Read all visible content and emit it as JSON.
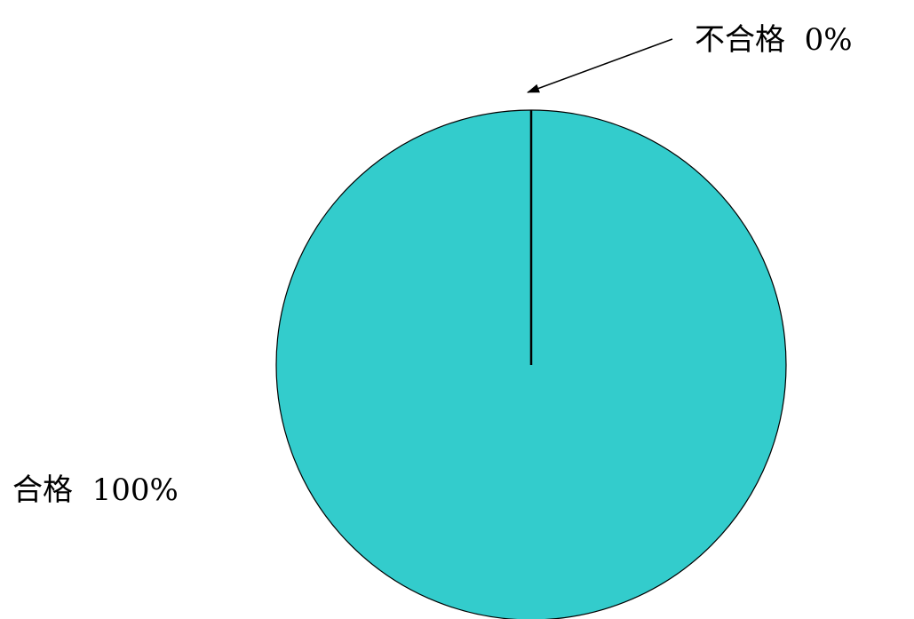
{
  "chart_data": {
    "type": "pie",
    "slices": [
      {
        "label": "不合格",
        "value": 0,
        "value_label": "0%",
        "color": "#ffffff"
      },
      {
        "label": "合格",
        "value": 100,
        "value_label": "100%",
        "color": "#33CCCC"
      }
    ],
    "title": "",
    "legend": "none"
  }
}
